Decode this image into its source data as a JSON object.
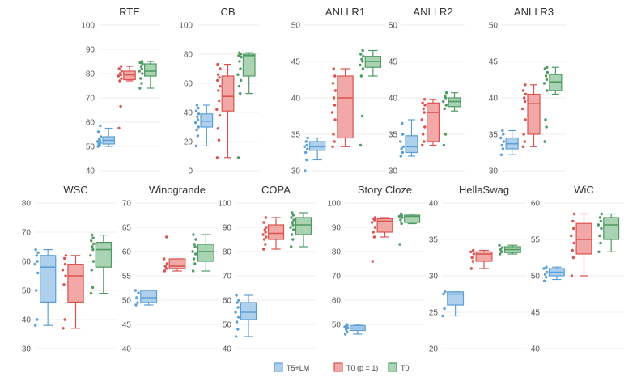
{
  "colors": {
    "T5+LM": {
      "fill": "#aed0ec",
      "stroke": "#5c9fd6",
      "dot": "#5c9fd6"
    },
    "T0 (p = 1)": {
      "fill": "#f2a8a6",
      "stroke": "#d9534f",
      "dot": "#d9534f"
    },
    "T0": {
      "fill": "#a9d3b3",
      "stroke": "#4f9a63",
      "dot": "#4f9a63"
    }
  },
  "legend": [
    "T5+LM",
    "T0 (p = 1)",
    "T0"
  ],
  "chart_data": [
    {
      "type": "box",
      "title": "RTE",
      "ylim": [
        40,
        100
      ],
      "yticks": [
        40,
        50,
        60,
        70,
        80,
        90,
        100
      ],
      "series": [
        {
          "name": "T5+LM",
          "q1": 51,
          "median": 52.5,
          "q3": 54,
          "whisker_low": 50,
          "whisker_high": 57.5,
          "points": [
            50,
            50.5,
            51,
            51.5,
            52,
            52.5,
            53,
            54,
            56,
            58.5
          ]
        },
        {
          "name": "T0 (p = 1)",
          "q1": 77.5,
          "median": 79.5,
          "q3": 81,
          "whisker_low": 77,
          "whisker_high": 83,
          "points": [
            57.5,
            66.5,
            77,
            78,
            79,
            79.5,
            80,
            81,
            82,
            83
          ]
        },
        {
          "name": "T0",
          "q1": 79,
          "median": 81,
          "q3": 84,
          "whisker_low": 74,
          "whisker_high": 85,
          "points": [
            74,
            76,
            78,
            80,
            81,
            82,
            83,
            84,
            84.5,
            85
          ]
        }
      ]
    },
    {
      "type": "box",
      "title": "CB",
      "ylim": [
        0,
        100
      ],
      "yticks": [
        0,
        20,
        40,
        60,
        80,
        100
      ],
      "series": [
        {
          "name": "T5+LM",
          "q1": 30,
          "median": 34,
          "q3": 39,
          "whisker_low": 17,
          "whisker_high": 45,
          "points": [
            17,
            24,
            28,
            30,
            33,
            35,
            37,
            39,
            41,
            43,
            45
          ]
        },
        {
          "name": "T0 (p = 1)",
          "q1": 41,
          "median": 51,
          "q3": 65,
          "whisker_low": 9,
          "whisker_high": 73,
          "points": [
            9,
            21,
            29,
            38,
            42,
            48,
            55,
            58,
            62,
            64,
            66,
            70,
            73
          ]
        },
        {
          "name": "T0",
          "q1": 65,
          "median": 79,
          "q3": 80,
          "whisker_low": 53,
          "whisker_high": 81,
          "points": [
            9,
            53,
            58,
            62,
            66,
            70,
            75,
            78,
            79,
            80,
            81
          ]
        }
      ]
    },
    {
      "type": "box",
      "title": "ANLI R1",
      "ylim": [
        30,
        50
      ],
      "yticks": [
        30,
        35,
        40,
        45,
        50
      ],
      "series": [
        {
          "name": "T5+LM",
          "q1": 32.8,
          "median": 33.3,
          "q3": 34,
          "whisker_low": 31.5,
          "whisker_high": 34.5,
          "points": [
            30,
            31.5,
            32.5,
            33,
            33.3,
            33.5,
            34,
            34.5
          ]
        },
        {
          "name": "T0 (p = 1)",
          "q1": 34.5,
          "median": 40,
          "q3": 43,
          "whisker_low": 33.3,
          "whisker_high": 44,
          "points": [
            33.3,
            34,
            35,
            37,
            38,
            39,
            40,
            41,
            42,
            43,
            44
          ]
        },
        {
          "name": "T0",
          "q1": 44.2,
          "median": 45,
          "q3": 45.7,
          "whisker_low": 43,
          "whisker_high": 46.5,
          "points": [
            33.5,
            37.5,
            43,
            44,
            44.5,
            45,
            45.3,
            45.7,
            46,
            46.5
          ]
        }
      ]
    },
    {
      "type": "box",
      "title": "ANLI R2",
      "ylim": [
        30,
        50
      ],
      "yticks": [
        30,
        35,
        40,
        45,
        50
      ],
      "series": [
        {
          "name": "T5+LM",
          "q1": 32.5,
          "median": 33.3,
          "q3": 34.8,
          "whisker_low": 32,
          "whisker_high": 37,
          "points": [
            32,
            32.5,
            33,
            33.3,
            34,
            35,
            36.5
          ]
        },
        {
          "name": "T0 (p = 1)",
          "q1": 34,
          "median": 38,
          "q3": 39.3,
          "whisker_low": 33.5,
          "whisker_high": 39.8,
          "points": [
            33.5,
            34,
            35,
            36,
            37,
            38,
            38.5,
            39,
            39.3,
            39.8
          ]
        },
        {
          "name": "T0",
          "q1": 38.8,
          "median": 39.5,
          "q3": 40,
          "whisker_low": 38.2,
          "whisker_high": 40.7,
          "points": [
            33.5,
            35,
            38.5,
            39,
            39.5,
            40,
            40.3,
            40.7
          ]
        }
      ]
    },
    {
      "type": "box",
      "title": "ANLI R3",
      "ylim": [
        30,
        50
      ],
      "yticks": [
        30,
        35,
        40,
        45,
        50
      ],
      "series": [
        {
          "name": "T5+LM",
          "q1": 33,
          "median": 33.7,
          "q3": 34.5,
          "whisker_low": 32.2,
          "whisker_high": 35.5,
          "points": [
            32.2,
            33,
            33.5,
            34,
            34.5,
            35,
            35.5
          ]
        },
        {
          "name": "T0 (p = 1)",
          "q1": 35,
          "median": 39.2,
          "q3": 40.5,
          "whisker_low": 33.3,
          "whisker_high": 41.8,
          "points": [
            33.3,
            34,
            35,
            37,
            38.5,
            39.5,
            40,
            40.5,
            41,
            41.8
          ]
        },
        {
          "name": "T0",
          "q1": 41,
          "median": 42.2,
          "q3": 43.2,
          "whisker_low": 40.5,
          "whisker_high": 44.2,
          "points": [
            34,
            36,
            37,
            41,
            42,
            42.5,
            43,
            43.5,
            44,
            44.2
          ]
        }
      ]
    },
    {
      "type": "box",
      "title": "WSC",
      "ylim": [
        30,
        80
      ],
      "yticks": [
        30,
        40,
        50,
        60,
        70,
        80
      ],
      "series": [
        {
          "name": "T5+LM",
          "q1": 46,
          "median": 58,
          "q3": 62,
          "whisker_low": 38,
          "whisker_high": 64,
          "points": [
            38,
            40,
            50,
            56,
            59,
            60,
            62,
            63,
            64
          ]
        },
        {
          "name": "T0 (p = 1)",
          "q1": 46,
          "median": 55,
          "q3": 59,
          "whisker_low": 37,
          "whisker_high": 62,
          "points": [
            37,
            40,
            52,
            55,
            57,
            59,
            61,
            62
          ]
        },
        {
          "name": "T0",
          "q1": 58,
          "median": 64,
          "q3": 66.5,
          "whisker_low": 49,
          "whisker_high": 69,
          "points": [
            49,
            51,
            57,
            60,
            62,
            64,
            65,
            66,
            67,
            68,
            69
          ]
        }
      ]
    },
    {
      "type": "box",
      "title": "Winogrande",
      "ylim": [
        40,
        70
      ],
      "yticks": [
        40,
        45,
        50,
        55,
        60,
        65,
        70
      ],
      "series": [
        {
          "name": "T5+LM",
          "q1": 49.5,
          "median": 50.5,
          "q3": 52,
          "whisker_low": 49,
          "whisker_high": 52,
          "points": [
            49,
            49.5,
            50.5,
            51.5,
            52
          ]
        },
        {
          "name": "T0 (p = 1)",
          "q1": 56.5,
          "median": 57,
          "q3": 58.5,
          "whisker_low": 56,
          "whisker_high": 58.5,
          "points": [
            56,
            56.5,
            57,
            57.5,
            58.5,
            63
          ]
        },
        {
          "name": "T0",
          "q1": 58,
          "median": 60,
          "q3": 61.5,
          "whisker_low": 56,
          "whisker_high": 63.5,
          "points": [
            56,
            57.5,
            58.5,
            59.5,
            60,
            61,
            61.5,
            62.5,
            63.5
          ]
        }
      ]
    },
    {
      "type": "box",
      "title": "COPA",
      "ylim": [
        40,
        100
      ],
      "yticks": [
        40,
        50,
        60,
        70,
        80,
        90,
        100
      ],
      "series": [
        {
          "name": "T5+LM",
          "q1": 52,
          "median": 55,
          "q3": 59,
          "whisker_low": 45,
          "whisker_high": 62,
          "points": [
            45,
            48,
            51,
            53,
            55,
            57,
            59,
            60,
            62
          ]
        },
        {
          "name": "T0 (p = 1)",
          "q1": 85,
          "median": 87.5,
          "q3": 91,
          "whisker_low": 81,
          "whisker_high": 94,
          "points": [
            81,
            83,
            85,
            86,
            87,
            88,
            89,
            90,
            92,
            94
          ]
        },
        {
          "name": "T0",
          "q1": 87,
          "median": 91,
          "q3": 94,
          "whisker_low": 82,
          "whisker_high": 96,
          "points": [
            82,
            85,
            87,
            89,
            90,
            91,
            92,
            93,
            94,
            95,
            96
          ]
        }
      ]
    },
    {
      "type": "box",
      "title": "Story Cloze",
      "ylim": [
        40,
        100
      ],
      "yticks": [
        50,
        60,
        70,
        80,
        90,
        100
      ],
      "series": [
        {
          "name": "T5+LM",
          "q1": 47.5,
          "median": 48.5,
          "q3": 49.5,
          "whisker_low": 46,
          "whisker_high": 50,
          "points": [
            46,
            47,
            48,
            48.5,
            49,
            49.5,
            50
          ]
        },
        {
          "name": "T0 (p = 1)",
          "q1": 88,
          "median": 92.5,
          "q3": 93.5,
          "whisker_low": 86,
          "whisker_high": 94,
          "points": [
            76,
            86,
            88,
            90,
            92,
            93,
            93.5,
            94
          ]
        },
        {
          "name": "T0",
          "q1": 92,
          "median": 94.5,
          "q3": 95,
          "whisker_low": 91.5,
          "whisker_high": 95.5,
          "points": [
            83,
            91.5,
            93,
            94,
            94.5,
            95,
            95.5
          ]
        }
      ]
    },
    {
      "type": "box",
      "title": "HellaSwag",
      "ylim": [
        20,
        40
      ],
      "yticks": [
        20,
        25,
        30,
        35,
        40
      ],
      "series": [
        {
          "name": "T5+LM",
          "q1": 26,
          "median": 27.5,
          "q3": 27.8,
          "whisker_low": 24.5,
          "whisker_high": 27.8,
          "points": [
            24.5,
            25.5,
            27.5,
            27.8
          ]
        },
        {
          "name": "T0 (p = 1)",
          "q1": 32,
          "median": 33,
          "q3": 33.3,
          "whisker_low": 31,
          "whisker_high": 33.5,
          "points": [
            31,
            32,
            32.5,
            33,
            33.3,
            33.5
          ]
        },
        {
          "name": "T0",
          "q1": 33.2,
          "median": 33.6,
          "q3": 34,
          "whisker_low": 33,
          "whisker_high": 34.2,
          "points": [
            33,
            33.3,
            33.6,
            33.9,
            34.2
          ]
        }
      ]
    },
    {
      "type": "box",
      "title": "WiC",
      "ylim": [
        40,
        60
      ],
      "yticks": [
        40,
        45,
        50,
        55,
        60
      ],
      "series": [
        {
          "name": "T5+LM",
          "q1": 50,
          "median": 50.5,
          "q3": 51,
          "whisker_low": 49.5,
          "whisker_high": 51.2,
          "points": [
            49.3,
            49.8,
            50.2,
            50.5,
            51,
            51.2
          ]
        },
        {
          "name": "T0 (p = 1)",
          "q1": 53,
          "median": 55,
          "q3": 57.2,
          "whisker_low": 50,
          "whisker_high": 58.5,
          "points": [
            50,
            52.5,
            53.5,
            54.5,
            55.5,
            56.5,
            57.5,
            58.5
          ]
        },
        {
          "name": "T0",
          "q1": 55,
          "median": 57,
          "q3": 58,
          "whisker_low": 53.3,
          "whisker_high": 58.5,
          "points": [
            53.3,
            54.5,
            55.5,
            56.5,
            57,
            57.5,
            58,
            58.5
          ]
        }
      ]
    }
  ]
}
